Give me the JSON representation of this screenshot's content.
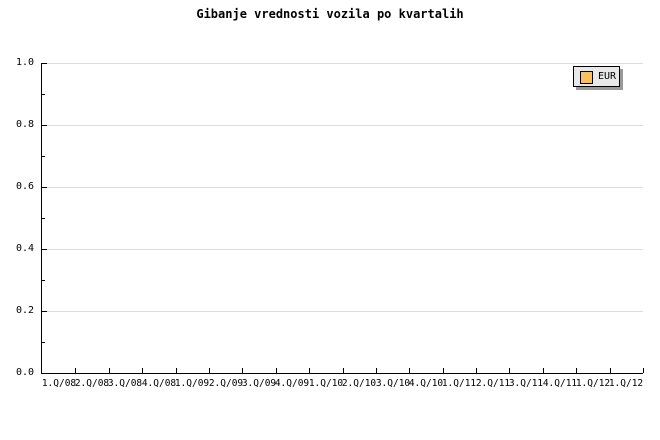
{
  "chart_data": {
    "type": "line",
    "title": "Gibanje vrednosti vozila po kvartalih",
    "categories": [
      "1.Q/08",
      "2.Q/08",
      "3.Q/08",
      "4.Q/08",
      "1.Q/09",
      "2.Q/09",
      "3.Q/09",
      "4.Q/09",
      "1.Q/10",
      "2.Q/10",
      "3.Q/10",
      "4.Q/10",
      "1.Q/11",
      "2.Q/11",
      "3.Q/11",
      "4.Q/11",
      "1.Q/12",
      "1.Q/12"
    ],
    "series": [
      {
        "name": "EUR",
        "color": "#fbbf5e",
        "values": []
      }
    ],
    "xlabel": "",
    "ylabel": "",
    "ylim": [
      0.0,
      1.0
    ],
    "yticks_major": [
      "0.0",
      "0.2",
      "0.4",
      "0.6",
      "0.8",
      "1.0"
    ],
    "ytick_minor_step": 0.1,
    "grid": "horizontal-major-only",
    "legend_position": "top-right"
  },
  "legend": {
    "entries": [
      {
        "label": "EUR",
        "swatch_color": "#fbbf5e"
      }
    ]
  },
  "colors": {
    "background": "#ffffff",
    "axis": "#000000",
    "grid": "#dcdcdc",
    "text": "#000000",
    "legend_bg": "#e8e8e8",
    "legend_border": "#000000",
    "legend_shadow": "#999999"
  }
}
